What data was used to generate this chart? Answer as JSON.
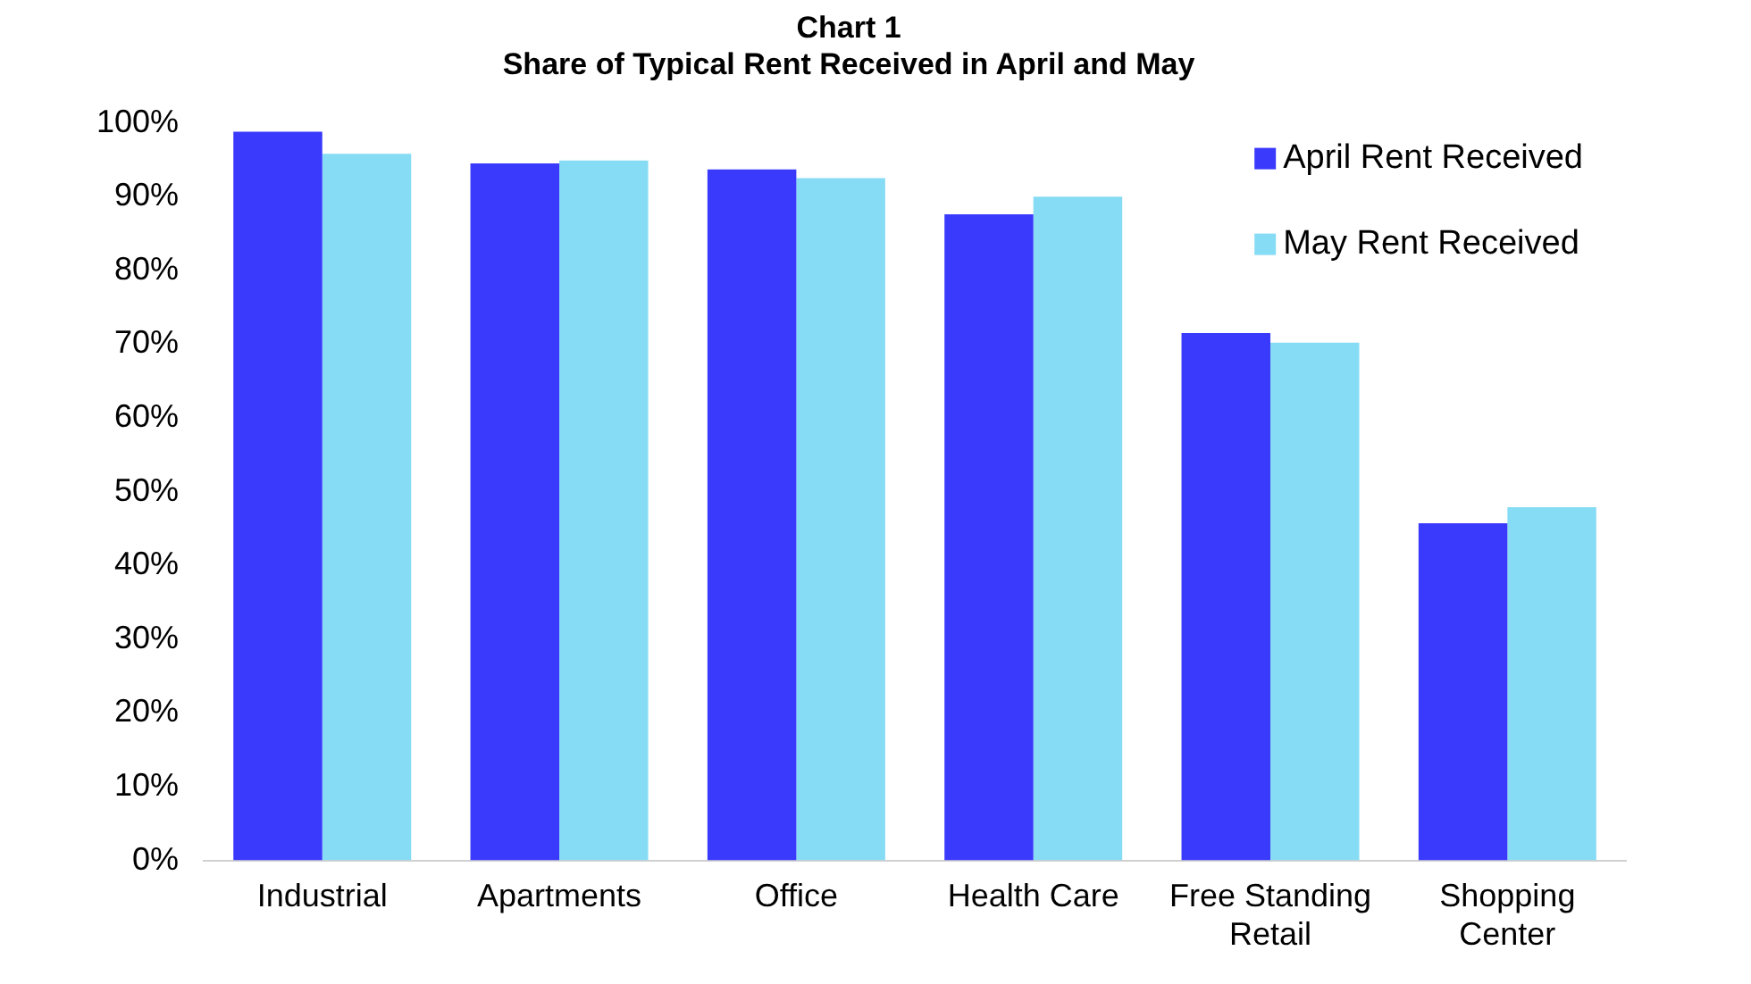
{
  "chart_data": {
    "type": "bar",
    "title": "Chart 1",
    "subtitle": "Share of Typical Rent Received in April and May",
    "categories": [
      "Industrial",
      "Apartments",
      "Office",
      "Health Care",
      "Free Standing Retail",
      "Shopping Center"
    ],
    "series": [
      {
        "name": "April Rent Received",
        "color": "#3a3afd",
        "values": [
          98.8,
          94.5,
          93.7,
          87.6,
          71.5,
          45.7
        ]
      },
      {
        "name": "May Rent Received",
        "color": "#87dcf5",
        "values": [
          95.8,
          94.9,
          92.5,
          90.0,
          70.2,
          47.9
        ]
      }
    ],
    "ylim": [
      0,
      100
    ],
    "yticks": [
      {
        "value": 0,
        "label": "0%"
      },
      {
        "value": 10,
        "label": "10%"
      },
      {
        "value": 20,
        "label": "20%"
      },
      {
        "value": 30,
        "label": "30%"
      },
      {
        "value": 40,
        "label": "40%"
      },
      {
        "value": 50,
        "label": "50%"
      },
      {
        "value": 60,
        "label": "60%"
      },
      {
        "value": 70,
        "label": "70%"
      },
      {
        "value": 80,
        "label": "80%"
      },
      {
        "value": 90,
        "label": "90%"
      },
      {
        "value": 100,
        "label": "100%"
      }
    ],
    "grid": false,
    "legend": "top right"
  }
}
